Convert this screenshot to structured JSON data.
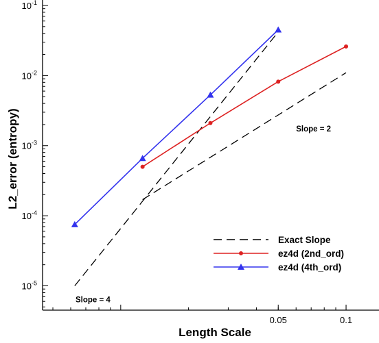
{
  "chart_data": {
    "type": "line",
    "xlabel": "Length Scale",
    "ylabel": "L2_error (entropy)",
    "x_scale": "log",
    "y_scale": "log",
    "xlim": [
      0.0045,
      0.14
    ],
    "ylim": [
      4.5e-06,
      0.1
    ],
    "x_ticks": [
      {
        "value": 0.05,
        "label": "0.05"
      },
      {
        "value": 0.1,
        "label": "0.1"
      }
    ],
    "y_ticks": [
      {
        "value": 1e-05,
        "base": "10",
        "exp": "-5"
      },
      {
        "value": 0.0001,
        "base": "10",
        "exp": "-4"
      },
      {
        "value": 0.001,
        "base": "10",
        "exp": "-3"
      },
      {
        "value": 0.01,
        "base": "10",
        "exp": "-2"
      },
      {
        "value": 0.1,
        "base": "10",
        "exp": "-1"
      }
    ],
    "grid": false,
    "legend_position": "bottom-right",
    "series": [
      {
        "name": "ez4d (2nd_ord)",
        "color": "#dd2222",
        "marker": "circle",
        "x": [
          0.0125,
          0.025,
          0.05,
          0.1
        ],
        "y": [
          0.0005,
          0.0021,
          0.0082,
          0.026
        ]
      },
      {
        "name": "ez4d (4th_ord)",
        "color": "#3333ee",
        "marker": "triangle",
        "x": [
          0.00625,
          0.0125,
          0.025,
          0.05
        ],
        "y": [
          7.5e-05,
          0.00066,
          0.0053,
          0.045
        ]
      }
    ],
    "reference_lines": [
      {
        "name": "Exact Slope",
        "color": "#000000",
        "dash": "dashed",
        "x": [
          0.00625,
          0.05
        ],
        "y": [
          1e-05,
          0.042
        ]
      },
      {
        "color": "#000000",
        "dash": "dashed",
        "x": [
          0.0125,
          0.1
        ],
        "y": [
          0.00017,
          0.011
        ]
      }
    ],
    "annotations": [
      {
        "text": "Slope = 2",
        "x": 0.06,
        "y": 0.0016
      },
      {
        "text": "Slope = 4",
        "x": 0.0063,
        "y": 5.8e-06
      }
    ]
  }
}
